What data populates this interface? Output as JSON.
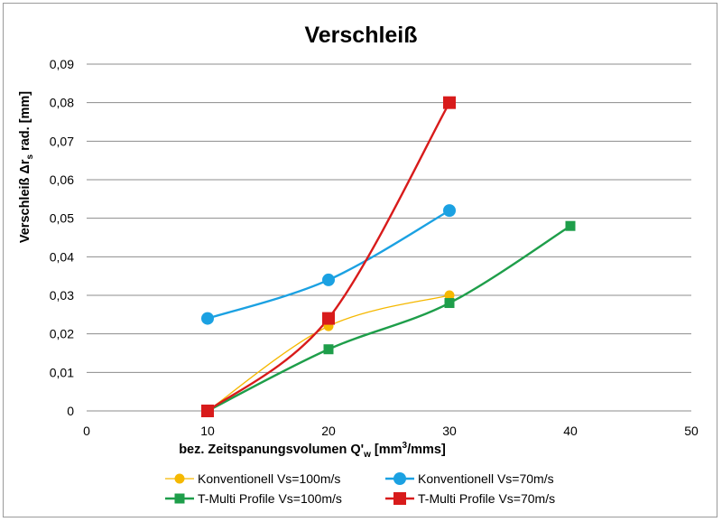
{
  "chart_data": {
    "type": "line",
    "title": "Verschleiß",
    "xlabel_main": "bez. Zeitspanungsvolumen Q'",
    "xlabel_sub": "w",
    "xlabel_unit_a": " [mm",
    "xlabel_unit_sup": "3",
    "xlabel_unit_b": "/mms]",
    "ylabel_main": "Verschleiß Δr",
    "ylabel_sub": "s",
    "ylabel_rest": " rad. [mm]",
    "xlim": [
      0,
      50
    ],
    "ylim": [
      0,
      0.09
    ],
    "x_ticks": [
      "0",
      "10",
      "20",
      "30",
      "40",
      "50"
    ],
    "y_ticks": [
      "0",
      "0,01",
      "0,02",
      "0,03",
      "0,04",
      "0,05",
      "0,06",
      "0,07",
      "0,08",
      "0,09"
    ],
    "grid": "horizontal",
    "legend_position": "bottom",
    "series": [
      {
        "name": "Konventionell  Vs=100m/s",
        "color": "#f5b800",
        "marker": "circle-small",
        "x": [
          10,
          20,
          30
        ],
        "y": [
          0,
          0.022,
          0.03
        ]
      },
      {
        "name": "Konventionell  Vs=70m/s",
        "color": "#1ba1e2",
        "marker": "circle",
        "x": [
          10,
          20,
          30
        ],
        "y": [
          0.024,
          0.034,
          0.052
        ]
      },
      {
        "name": "T-Multi Profile  Vs=100m/s",
        "color": "#1e9e4a",
        "marker": "square",
        "x": [
          10,
          20,
          30,
          40
        ],
        "y": [
          0,
          0.016,
          0.028,
          0.048
        ]
      },
      {
        "name": "T-Multi Profile  Vs=70m/s",
        "color": "#d81b1b",
        "marker": "square-large",
        "x": [
          10,
          20,
          30
        ],
        "y": [
          0,
          0.024,
          0.08
        ]
      }
    ]
  }
}
